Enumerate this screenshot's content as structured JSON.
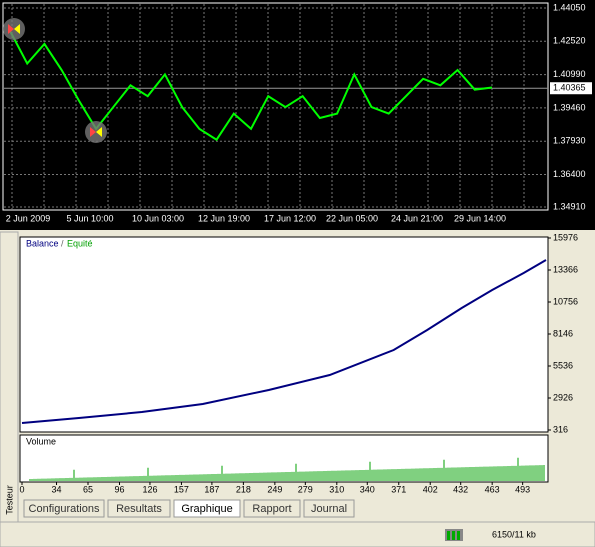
{
  "price_chart": {
    "yticks": [
      "1.44050",
      "1.42520",
      "1.40990",
      "1.39460",
      "1.37930",
      "1.36400",
      "1.34910"
    ],
    "current": "1.40365",
    "xticks": [
      "2 Jun 2009",
      "5 Jun 10:00",
      "10 Jun 03:00",
      "12 Jun 19:00",
      "17 Jun 12:00",
      "22 Jun 05:00",
      "24 Jun 21:00",
      "29 Jun 14:00"
    ],
    "ylim": [
      1.3491,
      1.4405
    ],
    "values": [
      1.43,
      1.415,
      1.424,
      1.412,
      1.398,
      1.385,
      1.395,
      1.405,
      1.4,
      1.41,
      1.395,
      1.385,
      1.38,
      1.392,
      1.385,
      1.4,
      1.395,
      1.4,
      1.39,
      1.392,
      1.41,
      1.395,
      1.392,
      1.4,
      1.408,
      1.405,
      1.412,
      1.403,
      1.404
    ]
  },
  "tester": {
    "legend": {
      "balance": "Balance",
      "sep": "/",
      "equity": "Equité"
    },
    "yticks": [
      15976,
      13366,
      10756,
      8146,
      5536,
      2926,
      316
    ],
    "ylim": [
      316,
      15976
    ],
    "volume": "Volume",
    "xticks": [
      0,
      34,
      65,
      96,
      126,
      157,
      187,
      218,
      249,
      279,
      310,
      340,
      371,
      402,
      432,
      463,
      493
    ],
    "xlim": [
      0,
      516
    ],
    "balance_trades": [
      0,
      56,
      118,
      178,
      243,
      303,
      366,
      399,
      433,
      463,
      494,
      516
    ],
    "balance_values": [
      887,
      1295,
      1784,
      2437,
      3579,
      4802,
      6841,
      8472,
      10267,
      11735,
      13121,
      14182
    ]
  },
  "tabs": [
    "Configurations",
    "Resultats",
    "Graphique",
    "Rapport",
    "Journal"
  ],
  "side_label": "Testeur",
  "status": "6150/11 kb"
}
